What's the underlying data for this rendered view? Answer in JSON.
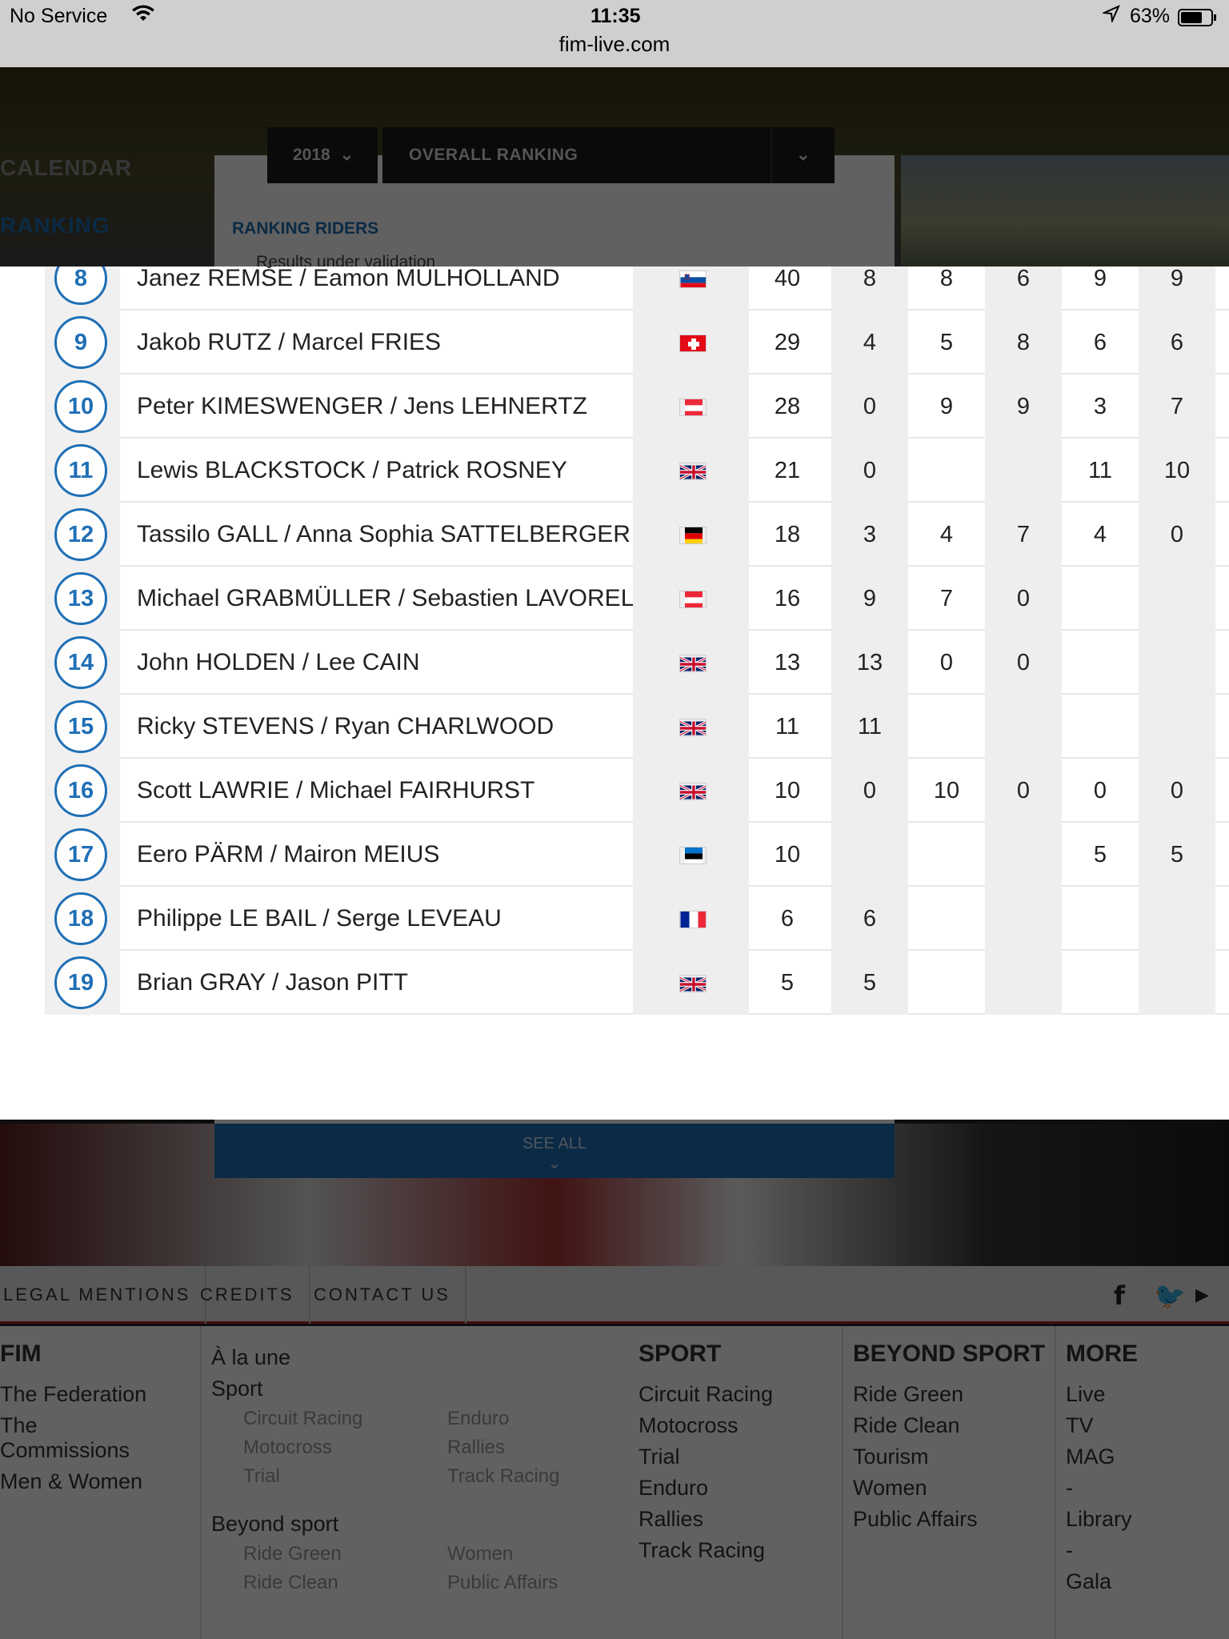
{
  "status_bar": {
    "carrier": "No Service",
    "time": "11:35",
    "battery": "63%",
    "url": "fim-live.com"
  },
  "sidebar": {
    "items": [
      {
        "label": "CALENDAR"
      },
      {
        "label": "RANKING"
      }
    ]
  },
  "filters": {
    "year": "2018",
    "ranking_type": "OVERALL RANKING"
  },
  "panel": {
    "title": "RANKING RIDERS",
    "note": "Results under validation"
  },
  "ranking_rows": [
    {
      "pos": "8",
      "name": "Janez REMŠE / Eamon MULHOLLAND",
      "flag": "slovenia",
      "total": "40",
      "r1": "8",
      "r2": "8",
      "r3": "6",
      "r4": "9",
      "r5": "9"
    },
    {
      "pos": "9",
      "name": "Jakob RUTZ / Marcel FRIES",
      "flag": "switzerland",
      "total": "29",
      "r1": "4",
      "r2": "5",
      "r3": "8",
      "r4": "6",
      "r5": "6"
    },
    {
      "pos": "10",
      "name": "Peter KIMESWENGER / Jens LEHNERTZ",
      "flag": "austria",
      "total": "28",
      "r1": "0",
      "r2": "9",
      "r3": "9",
      "r4": "3",
      "r5": "7"
    },
    {
      "pos": "11",
      "name": "Lewis BLACKSTOCK / Patrick ROSNEY",
      "flag": "uk",
      "total": "21",
      "r1": "0",
      "r2": "",
      "r3": "",
      "r4": "11",
      "r5": "10"
    },
    {
      "pos": "12",
      "name": "Tassilo GALL / Anna Sophia SATTELBERGER",
      "flag": "germany",
      "total": "18",
      "r1": "3",
      "r2": "4",
      "r3": "7",
      "r4": "4",
      "r5": "0"
    },
    {
      "pos": "13",
      "name": "Michael GRABMÜLLER / Sebastien LAVOREL",
      "flag": "austria",
      "total": "16",
      "r1": "9",
      "r2": "7",
      "r3": "0",
      "r4": "",
      "r5": ""
    },
    {
      "pos": "14",
      "name": "John HOLDEN / Lee CAIN",
      "flag": "uk",
      "total": "13",
      "r1": "13",
      "r2": "0",
      "r3": "0",
      "r4": "",
      "r5": ""
    },
    {
      "pos": "15",
      "name": "Ricky STEVENS / Ryan CHARLWOOD",
      "flag": "uk",
      "total": "11",
      "r1": "11",
      "r2": "",
      "r3": "",
      "r4": "",
      "r5": ""
    },
    {
      "pos": "16",
      "name": "Scott LAWRIE / Michael FAIRHURST",
      "flag": "uk",
      "total": "10",
      "r1": "0",
      "r2": "10",
      "r3": "0",
      "r4": "0",
      "r5": "0"
    },
    {
      "pos": "17",
      "name": "Eero PÄRM / Mairon MEIUS",
      "flag": "estonia",
      "total": "10",
      "r1": "",
      "r2": "",
      "r3": "",
      "r4": "5",
      "r5": "5"
    },
    {
      "pos": "18",
      "name": "Philippe LE BAIL / Serge LEVEAU",
      "flag": "france",
      "total": "6",
      "r1": "6",
      "r2": "",
      "r3": "",
      "r4": "",
      "r5": ""
    },
    {
      "pos": "19",
      "name": "Brian GRAY / Jason PITT",
      "flag": "uk",
      "total": "5",
      "r1": "5",
      "r2": "",
      "r3": "",
      "r4": "",
      "r5": ""
    }
  ],
  "see_all": {
    "label": "SEE ALL"
  },
  "footer_links": [
    "LEGAL MENTIONS",
    "CREDITS",
    "CONTACT US"
  ],
  "footer": {
    "fim": {
      "title": "FIM",
      "items": [
        "The Federation",
        "The",
        "Commissions",
        "Men & Women"
      ]
    },
    "a_la_une": "À la une",
    "sport_label": "Sport",
    "sport_subs_left": [
      "Circuit Racing",
      "Motocross",
      "Trial"
    ],
    "sport_subs_right": [
      "Enduro",
      "Rallies",
      "Track Racing"
    ],
    "beyond_label": "Beyond sport",
    "beyond_subs_left": [
      "Ride Green",
      "Ride Clean"
    ],
    "beyond_subs_right": [
      "Women",
      "Public Affairs"
    ],
    "sport": {
      "title": "SPORT",
      "items": [
        "Circuit Racing",
        "Motocross",
        "Trial",
        "Enduro",
        "Rallies",
        "Track Racing"
      ]
    },
    "beyond": {
      "title": "BEYOND SPORT",
      "items": [
        "Ride Green",
        "Ride Clean",
        "Tourism",
        "Women",
        "Public Affairs"
      ]
    },
    "more": {
      "title": "MORE",
      "items": [
        "Live",
        "TV",
        "MAG",
        "-",
        "Library",
        "-",
        "Gala"
      ]
    }
  },
  "colors": {
    "accent": "#1f6fb5",
    "footer_rule": "#bb2222"
  }
}
